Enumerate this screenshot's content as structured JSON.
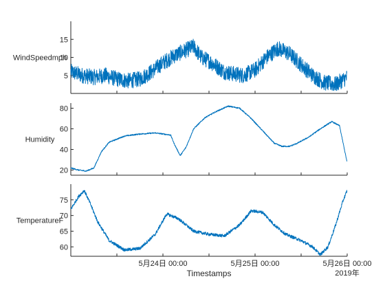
{
  "chart_data": {
    "type": "line",
    "layout": "stacked",
    "x_axis": {
      "label": "Timestamps",
      "year_label": "2019年",
      "range": [
        "2019-05-23T00:00",
        "2019-05-26T00:00"
      ],
      "ticks": [
        {
          "x": "2019-05-23T12:00",
          "label": ""
        },
        {
          "x": "2019-05-24T00:00",
          "label": "5月24日 00:00"
        },
        {
          "x": "2019-05-24T12:00",
          "label": ""
        },
        {
          "x": "2019-05-25T00:00",
          "label": "5月25日 00:00"
        },
        {
          "x": "2019-05-25T12:00",
          "label": ""
        },
        {
          "x": "2019-05-26T00:00",
          "label": "5月26日 00:00"
        }
      ]
    },
    "panels": [
      {
        "ylabel": "WindSpeedmph",
        "ylim": [
          0,
          20
        ],
        "yticks": [
          5,
          10,
          15
        ],
        "series": [
          {
            "noise": 2.2,
            "points": [
              [
                "2019-05-23T00:00",
                6
              ],
              [
                "2019-05-23T03:00",
                5
              ],
              [
                "2019-05-23T06:00",
                4.5
              ],
              [
                "2019-05-23T09:00",
                5
              ],
              [
                "2019-05-23T12:00",
                4
              ],
              [
                "2019-05-23T15:00",
                3.5
              ],
              [
                "2019-05-23T18:00",
                4
              ],
              [
                "2019-05-23T21:00",
                6
              ],
              [
                "2019-05-24T00:00",
                8.5
              ],
              [
                "2019-05-24T03:00",
                10.5
              ],
              [
                "2019-05-24T06:00",
                12
              ],
              [
                "2019-05-24T08:00",
                13
              ],
              [
                "2019-05-24T10:00",
                10
              ],
              [
                "2019-05-24T12:00",
                9
              ],
              [
                "2019-05-24T14:00",
                7.5
              ],
              [
                "2019-05-24T16:00",
                6
              ],
              [
                "2019-05-24T18:00",
                5.5
              ],
              [
                "2019-05-24T21:00",
                5
              ],
              [
                "2019-05-25T00:00",
                6.5
              ],
              [
                "2019-05-25T03:00",
                10
              ],
              [
                "2019-05-25T06:00",
                12.5
              ],
              [
                "2019-05-25T09:00",
                11
              ],
              [
                "2019-05-25T12:00",
                8
              ],
              [
                "2019-05-25T15:00",
                5
              ],
              [
                "2019-05-25T18:00",
                3
              ],
              [
                "2019-05-25T21:00",
                2.5
              ],
              [
                "2019-05-26T00:00",
                4.5
              ]
            ]
          }
        ]
      },
      {
        "ylabel": "Humidity",
        "ylim": [
          15,
          85
        ],
        "yticks": [
          20,
          40,
          60,
          80
        ],
        "series": [
          {
            "noise": 0.6,
            "points": [
              [
                "2019-05-23T00:00",
                22
              ],
              [
                "2019-05-23T02:00",
                20
              ],
              [
                "2019-05-23T04:00",
                19
              ],
              [
                "2019-05-23T06:00",
                22
              ],
              [
                "2019-05-23T08:00",
                38
              ],
              [
                "2019-05-23T10:00",
                47
              ],
              [
                "2019-05-23T14:00",
                53
              ],
              [
                "2019-05-23T18:00",
                55
              ],
              [
                "2019-05-23T22:00",
                56
              ],
              [
                "2019-05-24T02:00",
                54
              ],
              [
                "2019-05-24T03:00",
                45
              ],
              [
                "2019-05-24T04:30",
                34
              ],
              [
                "2019-05-24T06:00",
                42
              ],
              [
                "2019-05-24T08:00",
                60
              ],
              [
                "2019-05-24T11:00",
                71
              ],
              [
                "2019-05-24T14:00",
                77
              ],
              [
                "2019-05-24T17:00",
                82
              ],
              [
                "2019-05-24T20:00",
                80
              ],
              [
                "2019-05-24T23:00",
                70
              ],
              [
                "2019-05-25T02:00",
                58
              ],
              [
                "2019-05-25T05:00",
                46
              ],
              [
                "2019-05-25T07:00",
                43
              ],
              [
                "2019-05-25T09:00",
                43
              ],
              [
                "2019-05-25T11:00",
                46
              ],
              [
                "2019-05-25T14:00",
                52
              ],
              [
                "2019-05-25T17:00",
                60
              ],
              [
                "2019-05-25T20:00",
                67
              ],
              [
                "2019-05-25T22:00",
                63
              ],
              [
                "2019-05-26T00:00",
                27
              ]
            ]
          }
        ]
      },
      {
        "ylabel": "TemperatureF",
        "ylim": [
          57,
          80
        ],
        "yticks": [
          60,
          65,
          70,
          75
        ],
        "series": [
          {
            "noise": 0.5,
            "points": [
              [
                "2019-05-23T00:00",
                72
              ],
              [
                "2019-05-23T02:00",
                76
              ],
              [
                "2019-05-23T03:30",
                78
              ],
              [
                "2019-05-23T05:00",
                74
              ],
              [
                "2019-05-23T07:00",
                68
              ],
              [
                "2019-05-23T10:00",
                62
              ],
              [
                "2019-05-23T14:00",
                59
              ],
              [
                "2019-05-23T18:00",
                59.5
              ],
              [
                "2019-05-23T22:00",
                64
              ],
              [
                "2019-05-24T01:00",
                70.5
              ],
              [
                "2019-05-24T04:00",
                69
              ],
              [
                "2019-05-24T08:00",
                65
              ],
              [
                "2019-05-24T12:00",
                64
              ],
              [
                "2019-05-24T16:00",
                63.5
              ],
              [
                "2019-05-24T20:00",
                67
              ],
              [
                "2019-05-24T23:00",
                71.5
              ],
              [
                "2019-05-25T02:00",
                71
              ],
              [
                "2019-05-25T05:00",
                67
              ],
              [
                "2019-05-25T08:00",
                64
              ],
              [
                "2019-05-25T12:00",
                62
              ],
              [
                "2019-05-25T15:00",
                60
              ],
              [
                "2019-05-25T17:00",
                57.5
              ],
              [
                "2019-05-25T19:00",
                60
              ],
              [
                "2019-05-25T21:00",
                67
              ],
              [
                "2019-05-25T23:00",
                75
              ],
              [
                "2019-05-26T00:00",
                78
              ]
            ]
          }
        ]
      }
    ]
  }
}
